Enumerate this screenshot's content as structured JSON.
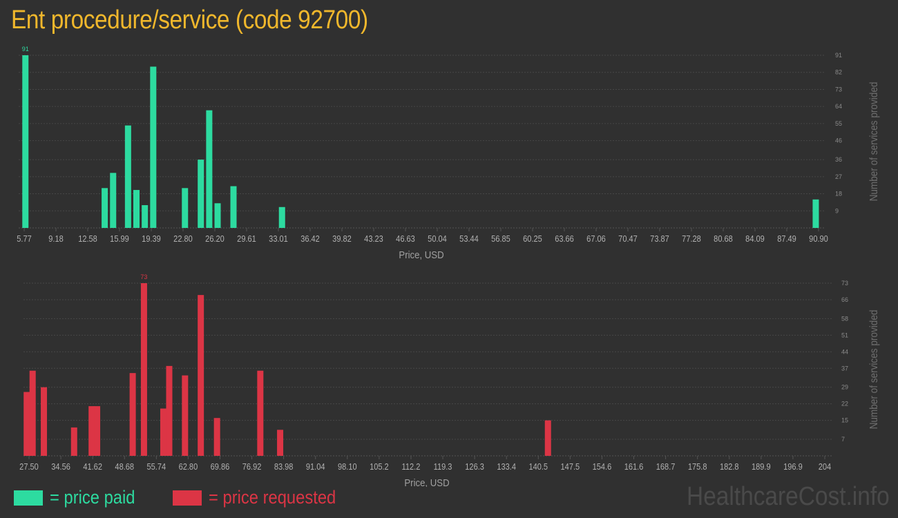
{
  "title": "Ent procedure/service (code 92700)",
  "watermark": "HealthcareCost.info",
  "legend": [
    {
      "label": "= price paid",
      "color": "#2ddba0"
    },
    {
      "label": "= price requested",
      "color": "#dc3545"
    }
  ],
  "chart_data": [
    {
      "type": "bar",
      "series_name": "price paid",
      "color": "#2ddba0",
      "xlabel": "Price, USD",
      "ylabel": "Number of services provided",
      "x_ticks": [
        "5.77",
        "9.18",
        "12.58",
        "15.99",
        "19.39",
        "22.80",
        "26.20",
        "29.61",
        "33.01",
        "36.42",
        "39.82",
        "43.23",
        "46.63",
        "50.04",
        "53.44",
        "56.85",
        "60.25",
        "63.66",
        "67.06",
        "70.47",
        "73.87",
        "77.28",
        "80.68",
        "84.09",
        "87.49",
        "90.90"
      ],
      "y_ticks": [
        "9",
        "18",
        "27",
        "36",
        "46",
        "55",
        "64",
        "73",
        "82",
        "91"
      ],
      "xlim": [
        5.77,
        90.9
      ],
      "ylim": [
        0,
        91
      ],
      "max_label": "91",
      "bars": [
        {
          "x": 5.9,
          "y": 91
        },
        {
          "x": 14.4,
          "y": 21
        },
        {
          "x": 15.3,
          "y": 29
        },
        {
          "x": 16.9,
          "y": 54
        },
        {
          "x": 17.8,
          "y": 20
        },
        {
          "x": 18.7,
          "y": 12
        },
        {
          "x": 19.6,
          "y": 85
        },
        {
          "x": 23.0,
          "y": 21
        },
        {
          "x": 24.7,
          "y": 36
        },
        {
          "x": 25.6,
          "y": 62
        },
        {
          "x": 26.5,
          "y": 13
        },
        {
          "x": 28.2,
          "y": 22
        },
        {
          "x": 33.4,
          "y": 11
        },
        {
          "x": 90.6,
          "y": 15
        }
      ]
    },
    {
      "type": "bar",
      "series_name": "price requested",
      "color": "#dc3545",
      "xlabel": "Price, USD",
      "ylabel": "Number of services provided",
      "x_ticks": [
        "27.50",
        "34.56",
        "41.62",
        "48.68",
        "55.74",
        "62.80",
        "69.86",
        "76.92",
        "83.98",
        "91.04",
        "98.10",
        "105.2",
        "112.2",
        "119.3",
        "126.3",
        "133.4",
        "140.5",
        "147.5",
        "154.6",
        "161.6",
        "168.7",
        "175.8",
        "182.8",
        "189.9",
        "196.9",
        "204"
      ],
      "y_ticks": [
        "7",
        "15",
        "22",
        "29",
        "37",
        "44",
        "51",
        "58",
        "66",
        "73"
      ],
      "xlim": [
        27.5,
        204
      ],
      "ylim": [
        0,
        73
      ],
      "max_label": "73",
      "bars": [
        {
          "x": 27.0,
          "y": 27
        },
        {
          "x": 28.3,
          "y": 36
        },
        {
          "x": 30.8,
          "y": 29
        },
        {
          "x": 37.5,
          "y": 12
        },
        {
          "x": 41.4,
          "y": 21
        },
        {
          "x": 42.6,
          "y": 21
        },
        {
          "x": 50.5,
          "y": 35
        },
        {
          "x": 53.0,
          "y": 73
        },
        {
          "x": 57.3,
          "y": 20
        },
        {
          "x": 58.6,
          "y": 38
        },
        {
          "x": 62.1,
          "y": 34
        },
        {
          "x": 65.6,
          "y": 68
        },
        {
          "x": 69.2,
          "y": 16
        },
        {
          "x": 78.8,
          "y": 36
        },
        {
          "x": 83.2,
          "y": 11
        },
        {
          "x": 142.6,
          "y": 15
        }
      ]
    }
  ]
}
